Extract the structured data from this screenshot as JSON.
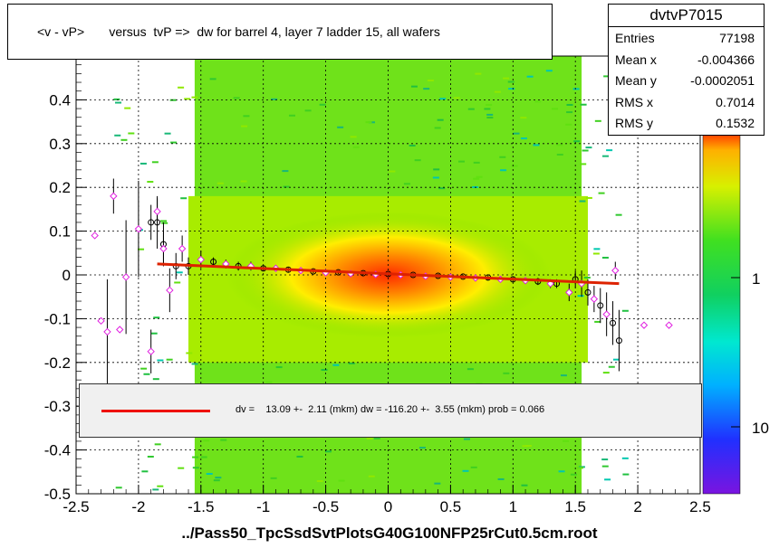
{
  "chart_data": {
    "type": "heatmap",
    "title": "<v - vP>       versus  tvP =>  dw for barrel 4, layer 7 ladder 15, all wafers",
    "xlabel": "../Pass50_TpcSsdSvtPlotsG40G100NFP25rCut0.5cm.root",
    "ylabel": "",
    "xlim": [
      -2.5,
      2.5
    ],
    "ylim": [
      -0.5,
      0.5
    ],
    "x_ticks": [
      "-2.5",
      "-2",
      "-1.5",
      "-1",
      "-0.5",
      "0",
      "0.5",
      "1",
      "1.5",
      "2",
      "2.5"
    ],
    "y_ticks": [
      "-0.5",
      "-0.4",
      "-0.3",
      "-0.2",
      "-0.1",
      "0",
      "0.1",
      "0.2",
      "0.3",
      "0.4"
    ],
    "colorbar_ticks": [
      "1",
      "10"
    ],
    "grid": true,
    "stats": {
      "name": "dvtvP7015",
      "rows": [
        {
          "label": "Entries",
          "value": "77198"
        },
        {
          "label": "Mean x",
          "value": "-0.004366"
        },
        {
          "label": "Mean y",
          "value": "-0.0002051"
        },
        {
          "label": "RMS x",
          "value": "0.7014"
        },
        {
          "label": "RMS y",
          "value": "0.1532"
        }
      ]
    },
    "fit": {
      "text": "dv =    13.09 +-  2.11 (mkm) dw = -116.20 +-  3.55 (mkm) prob = 0.066",
      "line_x": [
        -1.85,
        1.85
      ],
      "line_y": [
        0.025,
        -0.02
      ]
    },
    "profile_black": [
      {
        "x": -1.9,
        "y": 0.12,
        "err": 0.04
      },
      {
        "x": -1.85,
        "y": 0.12,
        "err": 0.06
      },
      {
        "x": -1.8,
        "y": 0.07,
        "err": 0.05
      },
      {
        "x": -1.7,
        "y": 0.02,
        "err": 0.03
      },
      {
        "x": -1.6,
        "y": 0.02,
        "err": 0.02
      },
      {
        "x": -1.4,
        "y": 0.03,
        "err": 0.01
      },
      {
        "x": -1.2,
        "y": 0.02,
        "err": 0.01
      },
      {
        "x": -1.0,
        "y": 0.015,
        "err": 0.005
      },
      {
        "x": -0.8,
        "y": 0.012,
        "err": 0.005
      },
      {
        "x": -0.6,
        "y": 0.008,
        "err": 0.004
      },
      {
        "x": -0.4,
        "y": 0.006,
        "err": 0.004
      },
      {
        "x": -0.2,
        "y": 0.004,
        "err": 0.004
      },
      {
        "x": 0.0,
        "y": 0.002,
        "err": 0.004
      },
      {
        "x": 0.2,
        "y": 0.0,
        "err": 0.004
      },
      {
        "x": 0.4,
        "y": -0.002,
        "err": 0.004
      },
      {
        "x": 0.6,
        "y": -0.004,
        "err": 0.004
      },
      {
        "x": 0.8,
        "y": -0.006,
        "err": 0.005
      },
      {
        "x": 1.0,
        "y": -0.01,
        "err": 0.005
      },
      {
        "x": 1.2,
        "y": -0.015,
        "err": 0.008
      },
      {
        "x": 1.35,
        "y": -0.02,
        "err": 0.01
      },
      {
        "x": 1.5,
        "y": -0.01,
        "err": 0.02
      },
      {
        "x": 1.6,
        "y": -0.04,
        "err": 0.03
      },
      {
        "x": 1.7,
        "y": -0.07,
        "err": 0.04
      },
      {
        "x": 1.8,
        "y": -0.11,
        "err": 0.05
      },
      {
        "x": 1.85,
        "y": -0.15,
        "err": 0.07
      }
    ],
    "profile_magenta": [
      {
        "x": -2.35,
        "y": 0.09,
        "err": 0.0
      },
      {
        "x": -2.3,
        "y": -0.105,
        "err": 0.0
      },
      {
        "x": -2.25,
        "y": -0.13,
        "err": 0.12
      },
      {
        "x": -2.2,
        "y": 0.18,
        "err": 0.04
      },
      {
        "x": -2.15,
        "y": -0.125,
        "err": 0.0
      },
      {
        "x": -2.1,
        "y": -0.005,
        "err": 0.13
      },
      {
        "x": -2.0,
        "y": 0.105,
        "err": 0.11
      },
      {
        "x": -1.9,
        "y": -0.175,
        "err": 0.05
      },
      {
        "x": -1.85,
        "y": 0.145,
        "err": 0.03
      },
      {
        "x": -1.8,
        "y": 0.06,
        "err": 0.04
      },
      {
        "x": -1.75,
        "y": -0.035,
        "err": 0.05
      },
      {
        "x": -1.65,
        "y": 0.06,
        "err": 0.03
      },
      {
        "x": -1.5,
        "y": 0.035,
        "err": 0.02
      },
      {
        "x": -1.3,
        "y": 0.025,
        "err": 0.01
      },
      {
        "x": -1.1,
        "y": 0.02,
        "err": 0.01
      },
      {
        "x": -0.9,
        "y": 0.015,
        "err": 0.005
      },
      {
        "x": -0.7,
        "y": 0.01,
        "err": 0.005
      },
      {
        "x": -0.5,
        "y": 0.005,
        "err": 0.004
      },
      {
        "x": -0.3,
        "y": 0.003,
        "err": 0.004
      },
      {
        "x": -0.1,
        "y": 0.001,
        "err": 0.004
      },
      {
        "x": 0.1,
        "y": 0.0,
        "err": 0.004
      },
      {
        "x": 0.3,
        "y": -0.003,
        "err": 0.004
      },
      {
        "x": 0.5,
        "y": -0.005,
        "err": 0.004
      },
      {
        "x": 0.7,
        "y": -0.007,
        "err": 0.005
      },
      {
        "x": 0.9,
        "y": -0.01,
        "err": 0.005
      },
      {
        "x": 1.1,
        "y": -0.013,
        "err": 0.006
      },
      {
        "x": 1.3,
        "y": -0.02,
        "err": 0.01
      },
      {
        "x": 1.45,
        "y": -0.04,
        "err": 0.02
      },
      {
        "x": 1.55,
        "y": -0.02,
        "err": 0.03
      },
      {
        "x": 1.65,
        "y": -0.055,
        "err": 0.03
      },
      {
        "x": 1.75,
        "y": -0.09,
        "err": 0.05
      },
      {
        "x": 1.82,
        "y": 0.01,
        "err": 0.02
      },
      {
        "x": 2.05,
        "y": -0.115,
        "err": 0.0
      },
      {
        "x": 2.25,
        "y": -0.115,
        "err": 0.0
      }
    ]
  }
}
